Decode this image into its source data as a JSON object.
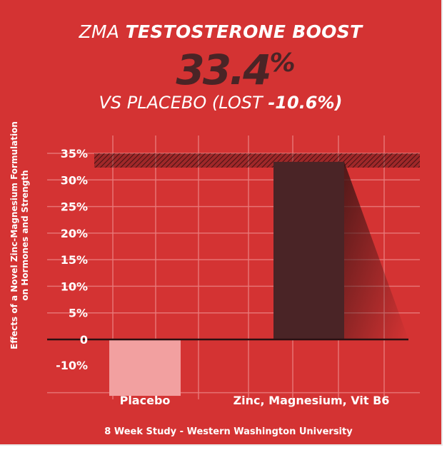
{
  "header": {
    "prefix": "ZMA",
    "emphasis": "TESTOSTERONE BOOST",
    "headline_value": "33.4",
    "headline_unit": "%",
    "vs_text": "VS PLACEBO (LOST",
    "vs_value": "-10.6%)"
  },
  "ylabel_line1": "Effects of a Novel Zinc-Magnesium Formulation",
  "ylabel_line2": "on Hormones and Strength",
  "footer": "8 Week Study - Western Washington University",
  "colors": {
    "background": "#d43333",
    "placebo_bar": "#f2a0a0",
    "zma_bar": "#4a2426",
    "grid": "#e97a7a",
    "text": "#ffffff"
  },
  "chart_data": {
    "type": "bar",
    "categories": [
      "Placebo",
      "Zinc, Magnesium, Vit B6"
    ],
    "values": [
      -10.6,
      33.4
    ],
    "ylim": [
      -10.6,
      35
    ],
    "yticks": [
      35,
      30,
      25,
      20,
      15,
      10,
      5,
      0,
      -10
    ],
    "ytick_labels": [
      "35%",
      "30%",
      "25%",
      "20%",
      "15%",
      "10%",
      "5%",
      "0",
      "-10%"
    ],
    "grid": true
  }
}
